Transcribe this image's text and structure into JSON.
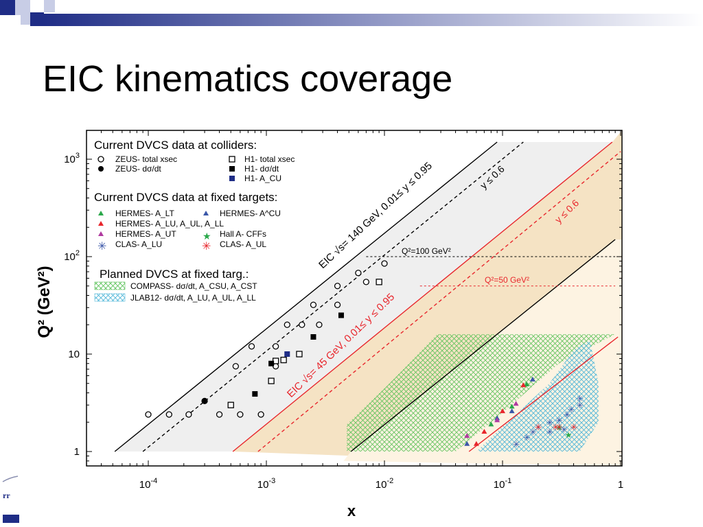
{
  "slide": {
    "title": "EIC kinematics coverage"
  },
  "colors": {
    "red": "#e8262c",
    "green": "#2aa84a",
    "blue": "#3a56a8",
    "magenta": "#b03aa0",
    "tan": "#f5e3c4",
    "cyan": "#4fb6d8",
    "navy": "#1f2d86"
  },
  "chart_data": {
    "type": "scatter",
    "title": "",
    "xlabel": "x",
    "ylabel": "Q² (GeV²)",
    "xscale": "log",
    "yscale": "log",
    "xlim": [
      2e-05,
      1
    ],
    "ylim": [
      0.8,
      1500
    ],
    "xticks": [
      {
        "v": 0.0001,
        "b": "10",
        "e": "-4"
      },
      {
        "v": 0.001,
        "b": "10",
        "e": "-3"
      },
      {
        "v": 0.01,
        "b": "10",
        "e": "-2"
      },
      {
        "v": 0.1,
        "b": "10",
        "e": "-1"
      },
      {
        "v": 1,
        "b": "1",
        "e": ""
      }
    ],
    "yticks": [
      {
        "v": 1,
        "b": "1",
        "e": ""
      },
      {
        "v": 10,
        "b": "10",
        "e": ""
      },
      {
        "v": 100,
        "b": "10",
        "e": "2"
      },
      {
        "v": 1000,
        "b": "10",
        "e": "3"
      }
    ],
    "lines": [
      {
        "label": "EIC √s= 140 GeV, 0.01≤ y ≤ 0.95",
        "color": "#000",
        "dash": false,
        "pts": [
          [
            5.2e-05,
            1
          ],
          [
            0.09,
            1500
          ]
        ]
      },
      {
        "label": "y ≤ 0.6",
        "color": "#000",
        "dash": true,
        "pts": [
          [
            9e-05,
            1
          ],
          [
            0.15,
            1500
          ]
        ]
      },
      {
        "label": "EIC √s= 45 GeV, 0.01≤ y ≤ 0.95",
        "color": "#e8262c",
        "dash": false,
        "pts": [
          [
            0.00052,
            1
          ],
          [
            0.85,
            1500
          ]
        ]
      },
      {
        "label": "y ≤ 0.6",
        "color": "#e8262c",
        "dash": true,
        "pts": [
          [
            0.00085,
            1
          ],
          [
            1,
            1200
          ]
        ]
      },
      {
        "label": "",
        "color": "#000",
        "dash": false,
        "pts": [
          [
            0.0052,
            1
          ],
          [
            0.9,
            150
          ]
        ]
      },
      {
        "label": "",
        "color": "#e8262c",
        "dash": false,
        "pts": [
          [
            0.052,
            1
          ],
          [
            0.95,
            15
          ]
        ]
      }
    ],
    "cut_lines": [
      {
        "label": "Q²=100 GeV²",
        "q2": 100,
        "x_from": 0.007,
        "x_to": 0.9
      },
      {
        "label": "Q²=50 GeV²",
        "q2": 50,
        "x_from": 0.02,
        "x_to": 0.9
      }
    ],
    "series": [
      {
        "name": "ZEUS- total xsec",
        "marker": "circle-open",
        "color": "#000",
        "points": [
          [
            0.0001,
            2.4
          ],
          [
            0.00015,
            2.4
          ],
          [
            0.00022,
            2.4
          ],
          [
            0.0003,
            3.3
          ],
          [
            0.0004,
            2.4
          ],
          [
            0.00055,
            7.5
          ],
          [
            0.0006,
            2.4
          ],
          [
            0.00075,
            12
          ],
          [
            0.0009,
            2.4
          ],
          [
            0.0012,
            12
          ],
          [
            0.0015,
            20
          ],
          [
            0.0012,
            7.5
          ],
          [
            0.002,
            20
          ],
          [
            0.0025,
            32
          ],
          [
            0.0028,
            20
          ],
          [
            0.004,
            32
          ],
          [
            0.006,
            68
          ],
          [
            0.007,
            55
          ],
          [
            0.01,
            85
          ],
          [
            0.004,
            50
          ]
        ]
      },
      {
        "name": "ZEUS- dσ/dt",
        "marker": "circle-filled",
        "color": "#000",
        "points": [
          [
            0.0003,
            3.3
          ]
        ]
      },
      {
        "name": "H1- total xsec",
        "marker": "square-open",
        "color": "#000",
        "points": [
          [
            0.0005,
            3.0
          ],
          [
            0.0011,
            5.3
          ],
          [
            0.0012,
            8.5
          ],
          [
            0.0014,
            8.7
          ],
          [
            0.0019,
            10
          ],
          [
            0.009,
            55
          ]
        ]
      },
      {
        "name": "H1- dσ/dt",
        "marker": "square-filled",
        "color": "#000",
        "points": [
          [
            0.0008,
            3.9
          ],
          [
            0.0011,
            8.0
          ],
          [
            0.0025,
            15
          ],
          [
            0.0043,
            25
          ]
        ]
      },
      {
        "name": "H1- A_CU",
        "marker": "square-filled",
        "color": "#1f2d86",
        "points": [
          [
            0.0015,
            10
          ]
        ]
      },
      {
        "name": "HERMES- A_LT",
        "marker": "triangle",
        "color": "#2aa84a",
        "points": [
          [
            0.08,
            1.9
          ],
          [
            0.12,
            2.9
          ],
          [
            0.16,
            4.9
          ]
        ]
      },
      {
        "name": "HERMES- A^CU",
        "marker": "triangle",
        "color": "#3a56a8",
        "points": [
          [
            0.05,
            1.2
          ],
          [
            0.09,
            2.2
          ],
          [
            0.12,
            2.6
          ],
          [
            0.18,
            5.5
          ]
        ]
      },
      {
        "name": "HERMES- A_LU, A_UL, A_LL",
        "marker": "triangle",
        "color": "#e8262c",
        "points": [
          [
            0.06,
            1.2
          ],
          [
            0.07,
            1.6
          ],
          [
            0.1,
            2.6
          ],
          [
            0.15,
            4.8
          ]
        ]
      },
      {
        "name": "HERMES- A_UT",
        "marker": "triangle",
        "color": "#b03aa0",
        "points": [
          [
            0.05,
            1.45
          ],
          [
            0.09,
            2.1
          ],
          [
            0.13,
            3.1
          ]
        ]
      },
      {
        "name": "Hall A- CFFs",
        "marker": "star",
        "color": "#2aa84a",
        "points": [
          [
            0.36,
            1.5
          ],
          [
            0.3,
            1.8
          ]
        ]
      },
      {
        "name": "CLAS- A_LU",
        "marker": "asterisk",
        "color": "#3a56a8",
        "points": [
          [
            0.13,
            1.2
          ],
          [
            0.16,
            1.4
          ],
          [
            0.18,
            1.6
          ],
          [
            0.2,
            1.8
          ],
          [
            0.25,
            2.0
          ],
          [
            0.25,
            1.6
          ],
          [
            0.3,
            2.1
          ],
          [
            0.35,
            2.4
          ],
          [
            0.33,
            1.7
          ],
          [
            0.38,
            2.7
          ],
          [
            0.45,
            3.0
          ],
          [
            0.45,
            3.5
          ]
        ]
      },
      {
        "name": "CLAS- A_UL",
        "marker": "asterisk",
        "color": "#e8262c",
        "points": [
          [
            0.2,
            1.8
          ],
          [
            0.28,
            1.8
          ],
          [
            0.3,
            1.8
          ],
          [
            0.4,
            1.8
          ]
        ]
      }
    ],
    "regions": [
      {
        "name": "COMPASS- dσ/dt, A_CSU, A_CST",
        "pattern": "hatch-green"
      },
      {
        "name": "JLAB12- dσ/dt, A_LU, A_UL, A_LL",
        "pattern": "hatch-cyan"
      }
    ],
    "legend": {
      "sections": [
        {
          "title": "Current DVCS data at colliders:"
        },
        {
          "title": "Current DVCS data at fixed targets:"
        },
        {
          "title": "Planned DVCS at fixed targ.:"
        }
      ]
    }
  }
}
